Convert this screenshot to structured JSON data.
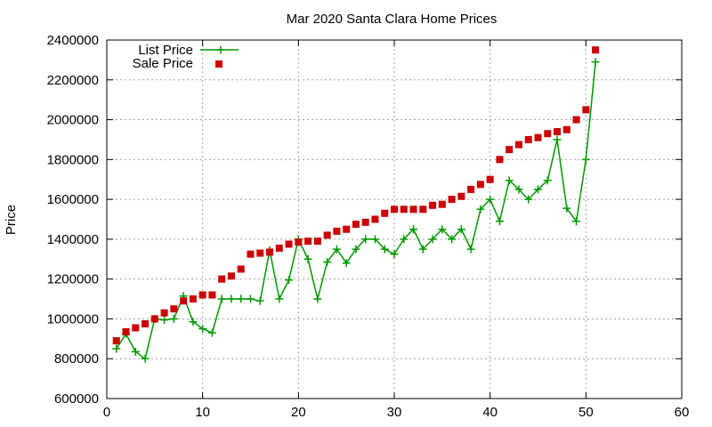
{
  "chart_data": {
    "type": "line",
    "title": "Mar 2020 Santa Clara Home Prices",
    "xlabel": "",
    "ylabel": "Price",
    "xlim": [
      0,
      60
    ],
    "ylim": [
      600000,
      2400000
    ],
    "x_ticks": [
      0,
      10,
      20,
      30,
      40,
      50,
      60
    ],
    "y_ticks": [
      600000,
      800000,
      1000000,
      1200000,
      1400000,
      1600000,
      1800000,
      2000000,
      2200000,
      2400000
    ],
    "grid": true,
    "legend_position": "top-left",
    "series": [
      {
        "name": "List Price",
        "style": "line+cross",
        "color": "#009900",
        "x": [
          1,
          2,
          3,
          4,
          5,
          6,
          7,
          8,
          9,
          10,
          11,
          12,
          13,
          14,
          15,
          16,
          17,
          18,
          19,
          20,
          21,
          22,
          23,
          24,
          25,
          26,
          27,
          28,
          29,
          30,
          31,
          32,
          33,
          34,
          35,
          36,
          37,
          38,
          39,
          40,
          41,
          42,
          43,
          44,
          45,
          46,
          47,
          48,
          49,
          50,
          51
        ],
        "values": [
          850000,
          925000,
          835000,
          800000,
          1000000,
          995000,
          1000000,
          1115000,
          985000,
          950000,
          930000,
          1100000,
          1100000,
          1100000,
          1100000,
          1090000,
          1345000,
          1100000,
          1195000,
          1400000,
          1300000,
          1100000,
          1285000,
          1350000,
          1280000,
          1350000,
          1400000,
          1400000,
          1350000,
          1325000,
          1400000,
          1450000,
          1350000,
          1400000,
          1450000,
          1400000,
          1450000,
          1350000,
          1550000,
          1600000,
          1490000,
          1695000,
          1650000,
          1600000,
          1650000,
          1695000,
          1900000,
          1555000,
          1490000,
          1800000,
          2290000
        ]
      },
      {
        "name": "Sale Price",
        "style": "points-square",
        "color": "#cc0000",
        "x": [
          1,
          2,
          3,
          4,
          5,
          6,
          7,
          8,
          9,
          10,
          11,
          12,
          13,
          14,
          15,
          16,
          17,
          18,
          19,
          20,
          21,
          22,
          23,
          24,
          25,
          26,
          27,
          28,
          29,
          30,
          31,
          32,
          33,
          34,
          35,
          36,
          37,
          38,
          39,
          40,
          41,
          42,
          43,
          44,
          45,
          46,
          47,
          48,
          49,
          50,
          51
        ],
        "values": [
          890000,
          935000,
          955000,
          975000,
          1000000,
          1030000,
          1050000,
          1090000,
          1100000,
          1120000,
          1120000,
          1200000,
          1215000,
          1250000,
          1325000,
          1330000,
          1335000,
          1355000,
          1375000,
          1385000,
          1390000,
          1390000,
          1420000,
          1440000,
          1450000,
          1475000,
          1485000,
          1500000,
          1530000,
          1550000,
          1550000,
          1550000,
          1550000,
          1570000,
          1575000,
          1600000,
          1615000,
          1650000,
          1675000,
          1700000,
          1800000,
          1850000,
          1875000,
          1900000,
          1910000,
          1930000,
          1940000,
          1950000,
          2000000,
          2050000,
          2350000
        ]
      }
    ]
  }
}
